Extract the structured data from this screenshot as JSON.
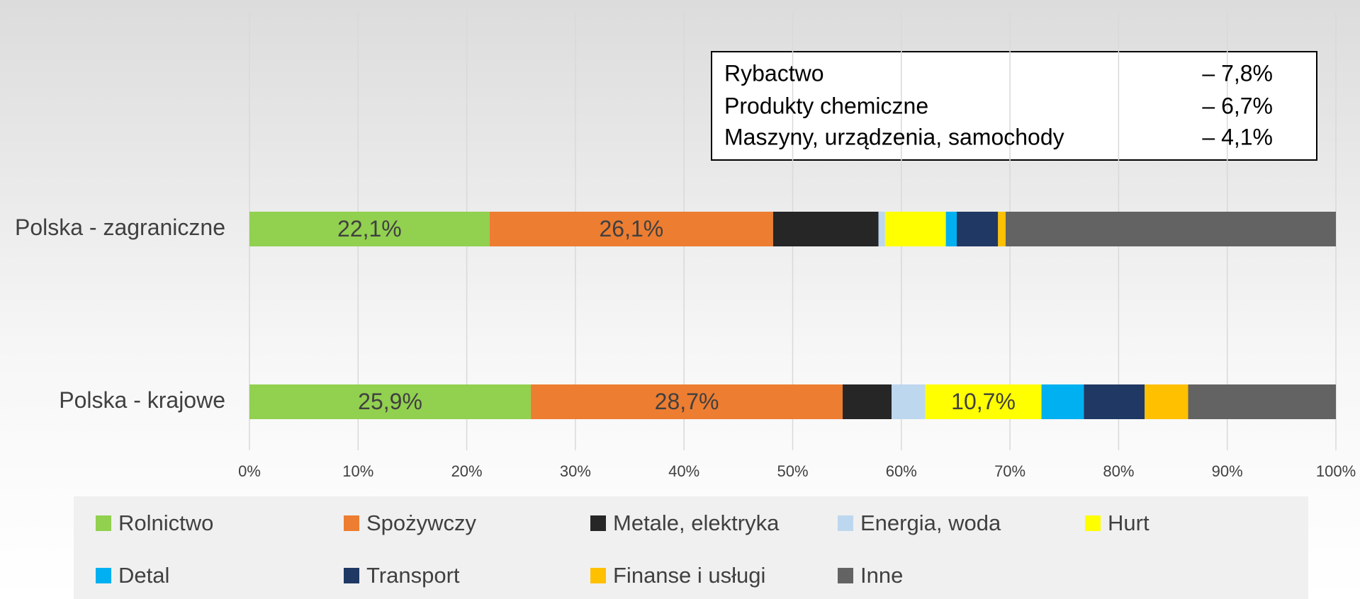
{
  "chart_data": {
    "type": "stacked-bar-horizontal",
    "categories": [
      "Polska - zagraniczne",
      "Polska - krajowe"
    ],
    "series": [
      {
        "name": "Rolnictwo",
        "color": "#92d050",
        "values": [
          22.1,
          25.9
        ],
        "value_labels": [
          "22,1%",
          "25,9%"
        ]
      },
      {
        "name": "Spożywczy",
        "color": "#ed7d31",
        "values": [
          26.1,
          28.7
        ],
        "value_labels": [
          "26,1%",
          "28,7%"
        ]
      },
      {
        "name": "Metale, elektryka",
        "color": "#262626",
        "values": [
          9.7,
          4.5
        ]
      },
      {
        "name": "Energia, woda",
        "color": "#bdd7ee",
        "values": [
          0.6,
          3.1
        ]
      },
      {
        "name": "Hurt",
        "color": "#ffff00",
        "values": [
          5.6,
          10.7
        ],
        "value_labels": [
          null,
          "10,7%"
        ]
      },
      {
        "name": "Detal",
        "color": "#00b0f0",
        "values": [
          1.0,
          3.9
        ]
      },
      {
        "name": "Transport",
        "color": "#203864",
        "values": [
          3.8,
          5.6
        ]
      },
      {
        "name": "Finanse i usługi",
        "color": "#ffc000",
        "values": [
          0.7,
          4.0
        ]
      },
      {
        "name": "Inne",
        "color": "#636363",
        "values": [
          30.4,
          13.6
        ]
      }
    ],
    "xlim": [
      0,
      100
    ],
    "xticks": [
      {
        "value": 0,
        "label": "0%"
      },
      {
        "value": 10,
        "label": "10%"
      },
      {
        "value": 20,
        "label": "20%"
      },
      {
        "value": 30,
        "label": "30%"
      },
      {
        "value": 40,
        "label": "40%"
      },
      {
        "value": 50,
        "label": "50%"
      },
      {
        "value": 60,
        "label": "60%"
      },
      {
        "value": 70,
        "label": "70%"
      },
      {
        "value": 80,
        "label": "80%"
      },
      {
        "value": 90,
        "label": "90%"
      },
      {
        "value": 100,
        "label": "100%"
      }
    ],
    "grid": true,
    "legend": "bottom",
    "annotations": [
      {
        "label": "Rybactwo",
        "value": "– 7,8%"
      },
      {
        "label": "Produkty chemiczne",
        "value": "– 6,7%"
      },
      {
        "label": "Maszyny, urządzenia, samochody",
        "value": "– 4,1%"
      }
    ]
  }
}
